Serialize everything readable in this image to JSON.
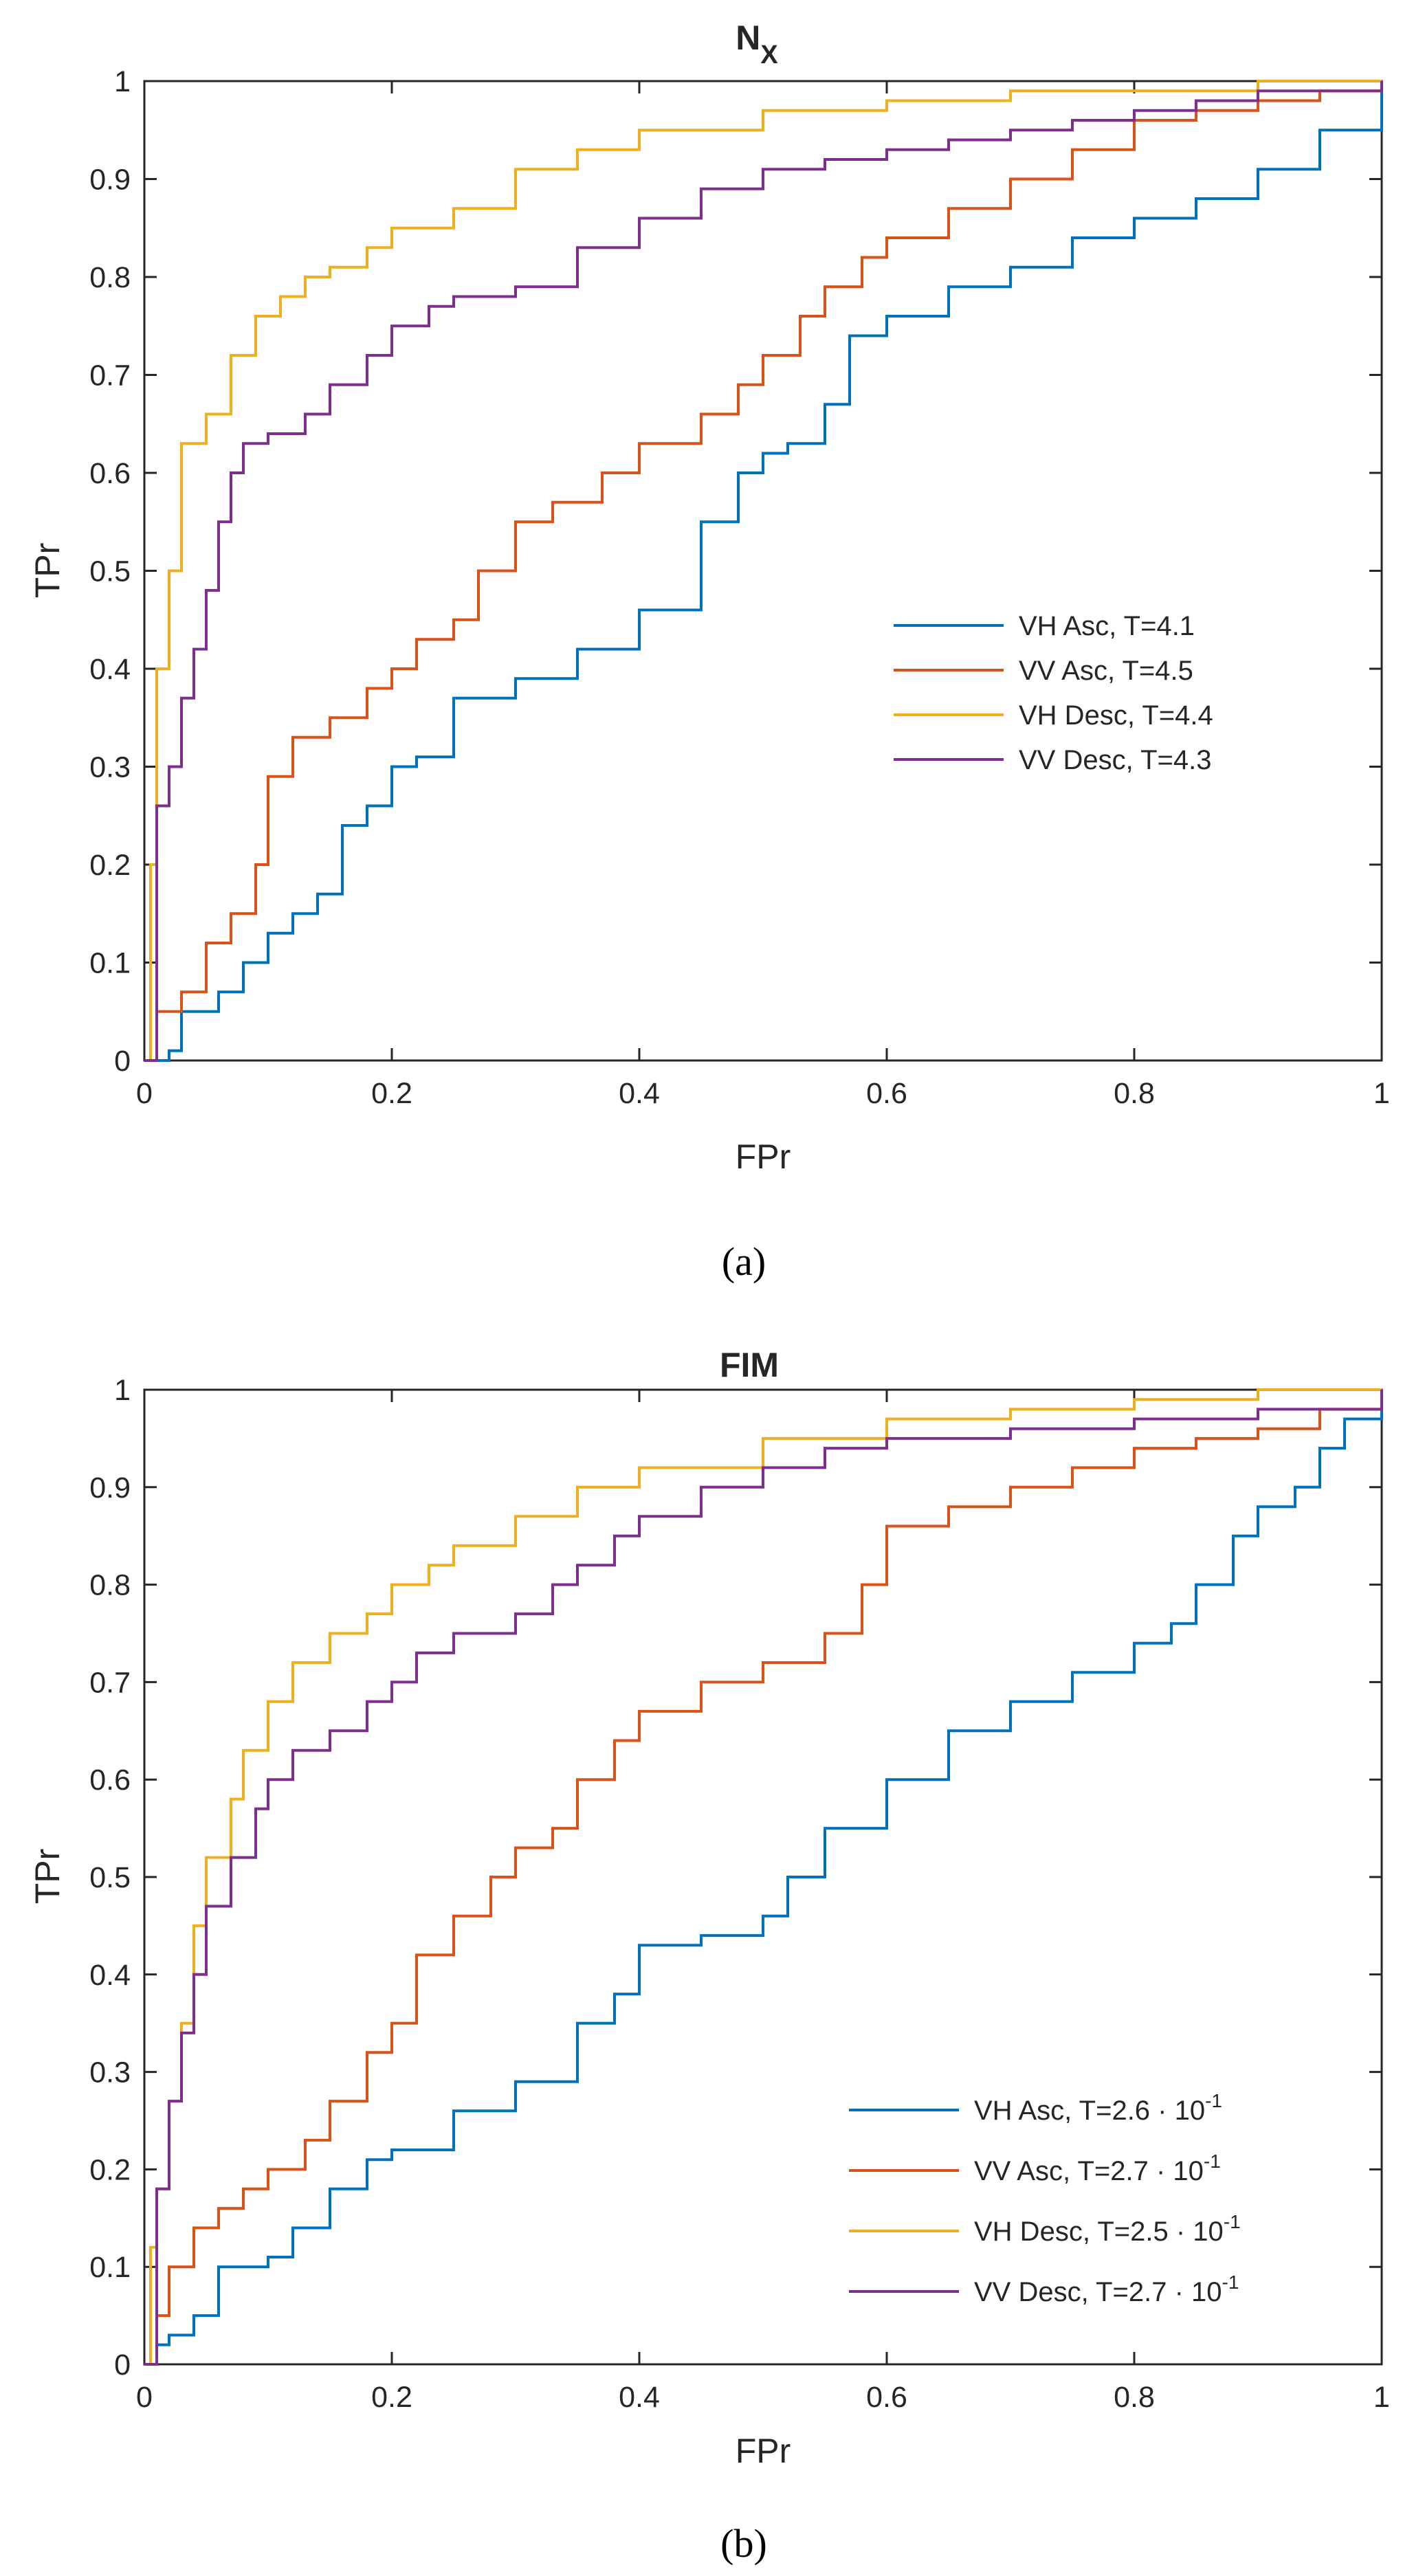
{
  "colors": {
    "blue": "#0072BD",
    "orange": "#D95319",
    "yellow": "#EDB120",
    "purple": "#7E2F8E"
  },
  "chart_data": [
    {
      "type": "line",
      "title": "N",
      "title_sub": "X",
      "caption": "(a)",
      "xlabel": "FPr",
      "ylabel": "TPr",
      "xlim": [
        0,
        1
      ],
      "ylim": [
        0,
        1
      ],
      "xticks": [
        "0",
        "0.2",
        "0.4",
        "0.6",
        "0.8",
        "1"
      ],
      "yticks": [
        "0",
        "0.1",
        "0.2",
        "0.3",
        "0.4",
        "0.5",
        "0.6",
        "0.7",
        "0.8",
        "0.9",
        "1"
      ],
      "grid": false,
      "legend_position": "center-right",
      "series": [
        {
          "name": "VH Asc, T=4.1",
          "color": "#0072BD",
          "x": [
            0,
            0.02,
            0.03,
            0.06,
            0.08,
            0.1,
            0.12,
            0.14,
            0.16,
            0.18,
            0.2,
            0.22,
            0.25,
            0.3,
            0.35,
            0.4,
            0.45,
            0.48,
            0.5,
            0.52,
            0.55,
            0.57,
            0.6,
            0.65,
            0.7,
            0.75,
            0.8,
            0.85,
            0.9,
            0.95,
            1.0
          ],
          "y": [
            0,
            0.01,
            0.05,
            0.07,
            0.1,
            0.13,
            0.15,
            0.17,
            0.24,
            0.26,
            0.3,
            0.31,
            0.37,
            0.39,
            0.42,
            0.46,
            0.55,
            0.6,
            0.62,
            0.63,
            0.67,
            0.74,
            0.76,
            0.79,
            0.81,
            0.84,
            0.86,
            0.88,
            0.91,
            0.95,
            1.0
          ]
        },
        {
          "name": "VV Asc, T=4.5",
          "color": "#D95319",
          "x": [
            0,
            0.01,
            0.03,
            0.05,
            0.07,
            0.09,
            0.1,
            0.12,
            0.15,
            0.18,
            0.2,
            0.22,
            0.25,
            0.27,
            0.3,
            0.33,
            0.37,
            0.4,
            0.45,
            0.48,
            0.5,
            0.53,
            0.55,
            0.58,
            0.6,
            0.65,
            0.7,
            0.75,
            0.8,
            0.85,
            0.9,
            0.95,
            1.0
          ],
          "y": [
            0,
            0.05,
            0.07,
            0.12,
            0.15,
            0.2,
            0.29,
            0.33,
            0.35,
            0.38,
            0.4,
            0.43,
            0.45,
            0.5,
            0.55,
            0.57,
            0.6,
            0.63,
            0.66,
            0.69,
            0.72,
            0.76,
            0.79,
            0.82,
            0.84,
            0.87,
            0.9,
            0.93,
            0.96,
            0.97,
            0.98,
            0.99,
            1.0
          ]
        },
        {
          "name": "VH Desc, T=4.4",
          "color": "#EDB120",
          "x": [
            0,
            0.005,
            0.01,
            0.02,
            0.03,
            0.05,
            0.07,
            0.09,
            0.11,
            0.13,
            0.15,
            0.18,
            0.2,
            0.25,
            0.3,
            0.35,
            0.4,
            0.5,
            0.6,
            0.7,
            0.8,
            0.9,
            1.0
          ],
          "y": [
            0,
            0.2,
            0.4,
            0.5,
            0.63,
            0.66,
            0.72,
            0.76,
            0.78,
            0.8,
            0.81,
            0.83,
            0.85,
            0.87,
            0.91,
            0.93,
            0.95,
            0.97,
            0.98,
            0.99,
            0.99,
            1.0,
            1.0
          ]
        },
        {
          "name": "VV Desc, T=4.3",
          "color": "#7E2F8E",
          "x": [
            0,
            0.01,
            0.02,
            0.03,
            0.04,
            0.05,
            0.06,
            0.07,
            0.08,
            0.1,
            0.13,
            0.15,
            0.18,
            0.2,
            0.23,
            0.25,
            0.3,
            0.35,
            0.4,
            0.45,
            0.5,
            0.55,
            0.6,
            0.65,
            0.7,
            0.75,
            0.8,
            0.85,
            0.9,
            1.0
          ],
          "y": [
            0,
            0.26,
            0.3,
            0.37,
            0.42,
            0.48,
            0.55,
            0.6,
            0.63,
            0.64,
            0.66,
            0.69,
            0.72,
            0.75,
            0.77,
            0.78,
            0.79,
            0.83,
            0.86,
            0.89,
            0.91,
            0.92,
            0.93,
            0.94,
            0.95,
            0.96,
            0.97,
            0.98,
            0.99,
            1.0
          ]
        }
      ]
    },
    {
      "type": "line",
      "title": "FIM",
      "title_sub": "",
      "caption": "(b)",
      "xlabel": "FPr",
      "ylabel": "TPr",
      "xlim": [
        0,
        1
      ],
      "ylim": [
        0,
        1
      ],
      "xticks": [
        "0",
        "0.2",
        "0.4",
        "0.6",
        "0.8",
        "1"
      ],
      "yticks": [
        "0",
        "0.1",
        "0.2",
        "0.3",
        "0.4",
        "0.5",
        "0.6",
        "0.7",
        "0.8",
        "0.9",
        "1"
      ],
      "grid": false,
      "legend_position": "bottom-right",
      "series": [
        {
          "name": "VH Asc, T=2.6 · 10",
          "exp": "-1",
          "color": "#0072BD",
          "x": [
            0,
            0.01,
            0.02,
            0.04,
            0.06,
            0.08,
            0.1,
            0.12,
            0.15,
            0.18,
            0.2,
            0.25,
            0.3,
            0.35,
            0.38,
            0.4,
            0.45,
            0.5,
            0.52,
            0.55,
            0.6,
            0.65,
            0.7,
            0.75,
            0.8,
            0.83,
            0.85,
            0.88,
            0.9,
            0.93,
            0.95,
            0.97,
            1.0
          ],
          "y": [
            0,
            0.02,
            0.03,
            0.05,
            0.1,
            0.1,
            0.11,
            0.14,
            0.18,
            0.21,
            0.22,
            0.26,
            0.29,
            0.35,
            0.38,
            0.43,
            0.44,
            0.46,
            0.5,
            0.55,
            0.6,
            0.65,
            0.68,
            0.71,
            0.74,
            0.76,
            0.8,
            0.85,
            0.88,
            0.9,
            0.94,
            0.97,
            1.0
          ]
        },
        {
          "name": "VV Asc, T=2.7 · 10",
          "exp": "-1",
          "color": "#D95319",
          "x": [
            0,
            0.01,
            0.02,
            0.04,
            0.06,
            0.08,
            0.1,
            0.13,
            0.15,
            0.18,
            0.2,
            0.22,
            0.25,
            0.28,
            0.3,
            0.33,
            0.35,
            0.38,
            0.4,
            0.45,
            0.5,
            0.55,
            0.58,
            0.6,
            0.65,
            0.7,
            0.75,
            0.8,
            0.85,
            0.9,
            0.95,
            1.0
          ],
          "y": [
            0,
            0.05,
            0.1,
            0.14,
            0.16,
            0.18,
            0.2,
            0.23,
            0.27,
            0.32,
            0.35,
            0.42,
            0.46,
            0.5,
            0.53,
            0.55,
            0.6,
            0.64,
            0.67,
            0.7,
            0.72,
            0.75,
            0.8,
            0.86,
            0.88,
            0.9,
            0.92,
            0.94,
            0.95,
            0.96,
            0.98,
            1.0
          ]
        },
        {
          "name": "VH Desc, T=2.5 · 10",
          "exp": "-1",
          "color": "#EDB120",
          "x": [
            0,
            0.005,
            0.01,
            0.02,
            0.03,
            0.04,
            0.05,
            0.07,
            0.08,
            0.1,
            0.12,
            0.15,
            0.18,
            0.2,
            0.23,
            0.25,
            0.3,
            0.35,
            0.4,
            0.5,
            0.6,
            0.7,
            0.8,
            0.9,
            1.0
          ],
          "y": [
            0,
            0.12,
            0.18,
            0.27,
            0.35,
            0.45,
            0.52,
            0.58,
            0.63,
            0.68,
            0.72,
            0.75,
            0.77,
            0.8,
            0.82,
            0.84,
            0.87,
            0.9,
            0.92,
            0.95,
            0.97,
            0.98,
            0.99,
            1.0,
            1.0
          ]
        },
        {
          "name": "VV Desc, T=2.7 · 10",
          "exp": "-1",
          "color": "#7E2F8E",
          "x": [
            0,
            0.01,
            0.02,
            0.03,
            0.04,
            0.05,
            0.07,
            0.09,
            0.1,
            0.12,
            0.15,
            0.18,
            0.2,
            0.22,
            0.25,
            0.3,
            0.33,
            0.35,
            0.38,
            0.4,
            0.45,
            0.5,
            0.55,
            0.6,
            0.7,
            0.8,
            0.9,
            1.0
          ],
          "y": [
            0,
            0.18,
            0.27,
            0.34,
            0.4,
            0.47,
            0.52,
            0.57,
            0.6,
            0.63,
            0.65,
            0.68,
            0.7,
            0.73,
            0.75,
            0.77,
            0.8,
            0.82,
            0.85,
            0.87,
            0.9,
            0.92,
            0.94,
            0.95,
            0.96,
            0.97,
            0.98,
            1.0
          ]
        }
      ]
    }
  ]
}
